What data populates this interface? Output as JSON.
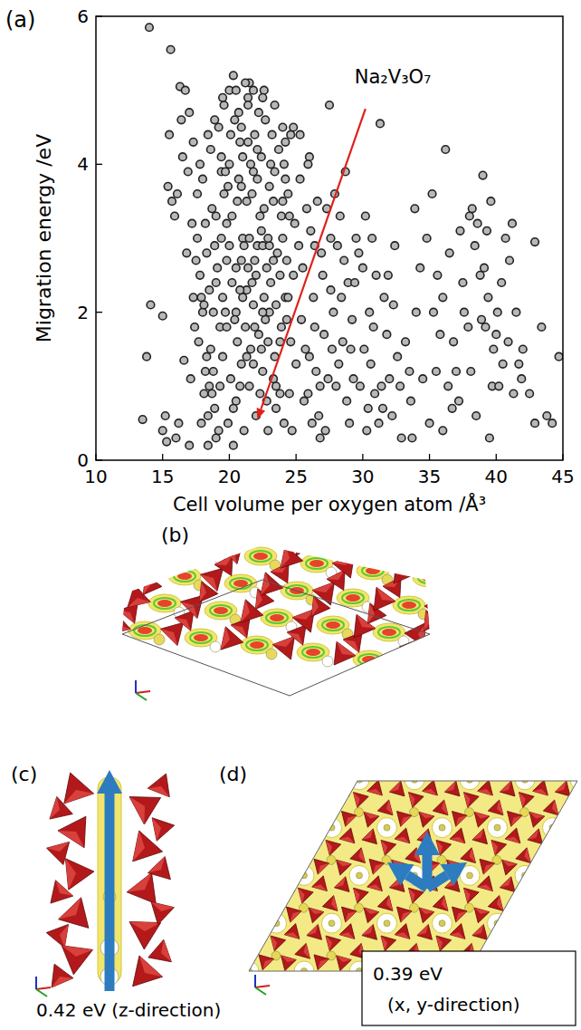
{
  "chart_data": {
    "type": "scatter",
    "panel_label": "(a)",
    "x_label": "Cell volume per oxygen atom /Å³",
    "y_label": "Migration energy /eV",
    "xlim": [
      10,
      45
    ],
    "ylim": [
      0,
      6
    ],
    "xticks": [
      10,
      15,
      20,
      25,
      30,
      35,
      40,
      45
    ],
    "yticks": [
      0,
      2,
      4,
      6
    ],
    "grid": false,
    "marker": "circle",
    "color": "#222222",
    "x": [
      17.6,
      17.8,
      18.0,
      18.2,
      18.4,
      18.6,
      18.8,
      19.0,
      17.7,
      18.1,
      18.3,
      18.7,
      19.2,
      17.9,
      18.5,
      19.4,
      18.9,
      17.6,
      19.1,
      18.4,
      19.6,
      19.8,
      20.0,
      20.2,
      19.5,
      19.9,
      20.4,
      20.6,
      19.7,
      20.1,
      20.3,
      20.8,
      21.0,
      21.2,
      20.5,
      20.9,
      21.4,
      21.1,
      20.7,
      21.3,
      21.5,
      21.7,
      21.9,
      22.1,
      21.6,
      22.0,
      22.3,
      21.8,
      22.2,
      21.5,
      22.4,
      22.6,
      22.8,
      23.0,
      22.5,
      22.9,
      23.2,
      22.7,
      23.1,
      22.4,
      23.4,
      23.6,
      23.8,
      24.0,
      23.5,
      23.9,
      24.2,
      23.3,
      24.1,
      23.7,
      24.4,
      24.6,
      24.8,
      25.0,
      24.5,
      24.9,
      24.3,
      24.7,
      25.2,
      24.1,
      17.8,
      18.2,
      18.6,
      19.0,
      19.4,
      19.8,
      20.2,
      20.6,
      21.0,
      21.4,
      21.8,
      22.2,
      22.6,
      23.0,
      23.4,
      23.8,
      24.2,
      24.6,
      18.9,
      19.3,
      19.7,
      20.1,
      20.5,
      20.9,
      21.3,
      21.7,
      22.1,
      22.5,
      22.9,
      23.3,
      18.0,
      18.5,
      19.0,
      19.5,
      20.0,
      20.5,
      21.0,
      21.5,
      22.0,
      22.5,
      23.0,
      23.5,
      24.0,
      18.3,
      18.8,
      19.3,
      19.8,
      20.3,
      20.8,
      21.3,
      21.8,
      22.3,
      22.8,
      23.3,
      23.8,
      24.3,
      17.9,
      18.4,
      18.9,
      19.4,
      19.9,
      20.4,
      20.9,
      21.4,
      21.9,
      22.4,
      22.9,
      23.4,
      23.9,
      24.4,
      20.0,
      20.7,
      21.2,
      21.6,
      22.1,
      22.7,
      23.1,
      17.5,
      18.1,
      18.7,
      19.2,
      19.6,
      20.3,
      20.8,
      21.1,
      21.9,
      22.6,
      23.5,
      24.0,
      24.5,
      19.5,
      20.5,
      20.9,
      21.4,
      22.5,
      24.8,
      25.3,
      26.0,
      24.2,
      21.8,
      25.3,
      25.5,
      25.7,
      25.9,
      26.1,
      26.3,
      26.5,
      26.7,
      26.9,
      27.1,
      25.4,
      25.8,
      26.2,
      26.6,
      27.0,
      27.4,
      27.8,
      28.2,
      28.6,
      27.6,
      25.6,
      26.0,
      26.4,
      26.8,
      27.2,
      27.6,
      28.0,
      28.4,
      28.8,
      29.2,
      27.3,
      27.7,
      28.1,
      28.5,
      28.9,
      29.3,
      29.7,
      30.1,
      30.5,
      30.9,
      29.0,
      29.4,
      29.8,
      30.2,
      30.6,
      31.0,
      31.4,
      31.8,
      32.2,
      32.6,
      30.0,
      30.4,
      30.8,
      31.2,
      31.6,
      32.0,
      32.4,
      32.8,
      33.2,
      33.6,
      25.9,
      26.4,
      27.9,
      28.3,
      29.5,
      30.3,
      31.5,
      32.9,
      33.5,
      34.0,
      27.5,
      31.3,
      36.2,
      28.7,
      31.9,
      26.8,
      29.1,
      30.7,
      33.9,
      32.3,
      34.3,
      34.8,
      35.2,
      35.6,
      36.0,
      36.4,
      36.8,
      37.2,
      37.6,
      38.0,
      38.2,
      38.4,
      38.6,
      38.8,
      39.0,
      39.2,
      39.4,
      39.6,
      39.8,
      40.0,
      38.1,
      38.5,
      38.9,
      39.3,
      39.7,
      40.1,
      40.5,
      40.9,
      41.3,
      41.7,
      34.5,
      35.0,
      35.5,
      36.0,
      36.5,
      37.0,
      37.5,
      35.8,
      36.7,
      37.9,
      40.4,
      41.0,
      41.5,
      42.0,
      42.5,
      42.9,
      43.4,
      44.2,
      44.7,
      43.8,
      42.9,
      41.9,
      40.7,
      39.5,
      33.7,
      35.3,
      37.3,
      40.2,
      41.2,
      39.1,
      14.0,
      15.6,
      13.8,
      14.1,
      15.0,
      13.5,
      15.0,
      16.0,
      15.5,
      15.4,
      16.3,
      16.7,
      17.0,
      16.5,
      16.9,
      17.2,
      16.1,
      17.3,
      15.9,
      16.6,
      16.2,
      17.1,
      16.8,
      17.4,
      16.4,
      15.7,
      17.0,
      15.2,
      15.3,
      17.3
    ],
    "values": [
      3.0,
      2.5,
      3.8,
      1.2,
      0.6,
      4.2,
      2.0,
      0.3,
      1.6,
      0.9,
      2.8,
      3.4,
      4.5,
      2.2,
      1.0,
      3.9,
      0.7,
      3.6,
      2.6,
      4.4,
      4.8,
      3.2,
      4.0,
      2.4,
      1.4,
      0.5,
      4.6,
      3.5,
      2.0,
      1.1,
      5.2,
      4.3,
      3.0,
      1.8,
      0.8,
      2.7,
      4.9,
      0.4,
      3.8,
      2.3,
      5.1,
      3.6,
      4.4,
      2.9,
      1.5,
      0.6,
      3.3,
      2.1,
      4.7,
      1.0,
      4.1,
      5.0,
      2.6,
      3.7,
      1.2,
      0.4,
      4.4,
      1.9,
      2.4,
      3.1,
      3.9,
      2.8,
      1.6,
      4.5,
      0.7,
      3.3,
      2.2,
      1.1,
      0.5,
      4.2,
      3.6,
      4.4,
      2.5,
      1.3,
      0.9,
      3.2,
      1.9,
      0.4,
      2.9,
      4.0,
      4.0,
      3.2,
      1.5,
      2.4,
      3.0,
      2.7,
      3.3,
      1.6,
      4.1,
      2.6,
      3.9,
      1.7,
      3.4,
      2.0,
      4.8,
      0.9,
      3.8,
      1.6,
      4.6,
      1.8,
      3.9,
      4.4,
      2.0,
      1.3,
      3.5,
      2.4,
      3.8,
      2.9,
      1.6,
      2.7,
      2.0,
      2.3,
      3.3,
      2.2,
      2.9,
      2.6,
      2.2,
      3.0,
      2.5,
      2.0,
      2.9,
      2.1,
      3.0,
      1.4,
      1.2,
      1.0,
      1.8,
      0.7,
      1.0,
      1.4,
      1.3,
      0.9,
      0.8,
      3.5,
      2.5,
      2.7,
      0.5,
      0.2,
      2.9,
      4.1,
      3.7,
      1.9,
      3.7,
      4.3,
      2.7,
      1.5,
      3.0,
      1.4,
      1.8,
      2.2,
      5.0,
      4.7,
      5.1,
      4.0,
      4.2,
      4.6,
      4.0,
      2.7,
      2.1,
      0.9,
      0.4,
      3.6,
      0.2,
      2.3,
      2.9,
      1.8,
      2.2,
      1.0,
      3.5,
      3.3,
      4.9,
      5.0,
      4.5,
      4.8,
      4.9,
      4.5,
      4.4,
      4.1,
      4.3,
      5.0,
      3.8,
      2.6,
      1.5,
      0.9,
      3.1,
      2.2,
      1.2,
      0.6,
      2.8,
      1.7,
      1.9,
      3.4,
      0.5,
      3.5,
      2.5,
      1.1,
      2.0,
      1.3,
      2.7,
      3.0,
      0.8,
      1.4,
      1.8,
      1.0,
      0.4,
      2.3,
      1.0,
      2.2,
      0.8,
      1.9,
      3.4,
      1.5,
      2.9,
      1.6,
      2.4,
      1.1,
      2.8,
      1.5,
      2.0,
      0.9,
      0.5,
      2.4,
      1.0,
      3.3,
      1.3,
      2.5,
      1.0,
      1.7,
      0.6,
      1.4,
      2.6,
      0.7,
      1.8,
      0.5,
      2.2,
      1.1,
      2.9,
      1.0,
      1.6,
      0.8,
      4.0,
      2.9,
      3.6,
      3.3,
      3.0,
      0.4,
      0.7,
      0.3,
      1.2,
      2.0,
      4.8,
      4.55,
      4.2,
      3.9,
      2.5,
      0.3,
      1.5,
      3.0,
      3.4,
      2.1,
      2.6,
      3.0,
      3.6,
      2.5,
      2.2,
      1.0,
      1.6,
      0.8,
      2.0,
      3.3,
      3.4,
      2.9,
      3.2,
      2.5,
      3.85,
      1.8,
      2.2,
      3.5,
      1.5,
      1.7,
      1.2,
      0.6,
      1.9,
      3.1,
      1.0,
      2.0,
      1.3,
      1.6,
      0.9,
      1.3,
      1.1,
      0.5,
      1.2,
      0.4,
      2.8,
      1.2,
      2.4,
      1.7,
      0.7,
      1.8,
      2.4,
      2.7,
      2.0,
      1.5,
      0.9,
      2.95,
      1.8,
      0.5,
      1.4,
      0.6,
      0.5,
      1.1,
      3.0,
      0.3,
      0.3,
      2.0,
      3.1,
      1.0,
      3.2,
      2.6,
      5.85,
      5.55,
      1.4,
      2.1,
      1.95,
      0.55,
      0.4,
      0.3,
      4.4,
      3.7,
      5.05,
      5.0,
      4.7,
      4.1,
      3.9,
      3.2,
      3.6,
      2.2,
      3.3,
      1.35,
      0.5,
      1.1,
      2.8,
      1.8,
      4.6,
      3.5,
      0.2,
      0.6,
      0.25,
      4.3
    ],
    "annotations": [
      {
        "text": "Na₂V₃O₇",
        "x": 22.1,
        "y": 0.55,
        "xytext": [
          30.2,
          4.75
        ]
      }
    ]
  },
  "diagram": {
    "panels": [
      {
        "label": "(b)"
      },
      {
        "label": "(c)",
        "caption": [
          "0.42 eV (z-direction)"
        ]
      },
      {
        "label": "(d)",
        "caption": [
          "0.39 eV",
          "(x, y-direction)"
        ]
      }
    ]
  }
}
